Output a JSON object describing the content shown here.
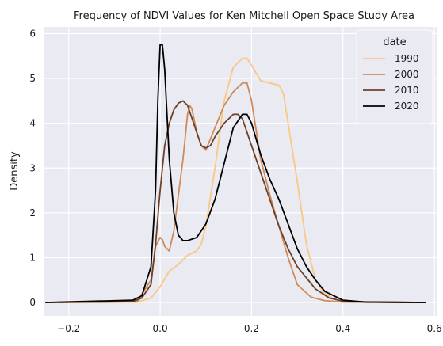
{
  "chart_data": {
    "type": "line",
    "title": "Frequency of NDVI Values for Ken Mitchell Open Space Study Area",
    "xlabel": "",
    "ylabel": "Density",
    "xlim": [
      -0.255,
      0.605
    ],
    "ylim": [
      -0.3,
      6.15
    ],
    "xticks": [
      -0.2,
      0.0,
      0.2,
      0.4,
      0.6
    ],
    "xtick_labels": [
      "−0.2",
      "0.0",
      "0.2",
      "0.4",
      "0.6"
    ],
    "yticks": [
      0,
      1,
      2,
      3,
      4,
      5,
      6
    ],
    "ytick_labels": [
      "0",
      "1",
      "2",
      "3",
      "4",
      "5",
      "6"
    ],
    "grid": true,
    "background": "#eaeaf2",
    "legend": {
      "title": "date",
      "placement": "top-right"
    },
    "series": [
      {
        "name": "1990",
        "color": "#fcc684",
        "x": [
          -0.22,
          -0.05,
          -0.02,
          0.0,
          0.02,
          0.04,
          0.06,
          0.07,
          0.08,
          0.09,
          0.1,
          0.12,
          0.14,
          0.16,
          0.18,
          0.19,
          0.2,
          0.22,
          0.24,
          0.26,
          0.27,
          0.28,
          0.3,
          0.32,
          0.34,
          0.36,
          0.38,
          0.4,
          0.45,
          0.58
        ],
        "y": [
          0,
          0.01,
          0.1,
          0.35,
          0.7,
          0.85,
          1.05,
          1.1,
          1.15,
          1.3,
          1.7,
          3.0,
          4.5,
          5.25,
          5.45,
          5.45,
          5.3,
          4.95,
          4.9,
          4.85,
          4.65,
          4.0,
          2.7,
          1.3,
          0.5,
          0.2,
          0.08,
          0.03,
          0.01,
          0
        ]
      },
      {
        "name": "2000",
        "color": "#cf8a5a",
        "x": [
          -0.22,
          -0.05,
          -0.02,
          -0.01,
          0.0,
          0.005,
          0.01,
          0.02,
          0.03,
          0.05,
          0.06,
          0.065,
          0.07,
          0.08,
          0.09,
          0.1,
          0.12,
          0.14,
          0.16,
          0.18,
          0.19,
          0.2,
          0.22,
          0.24,
          0.26,
          0.28,
          0.3,
          0.33,
          0.36,
          0.4,
          0.45,
          0.58
        ],
        "y": [
          0,
          0.02,
          0.5,
          1.25,
          1.45,
          1.4,
          1.25,
          1.15,
          1.6,
          3.2,
          4.2,
          4.4,
          4.3,
          3.8,
          3.5,
          3.4,
          3.9,
          4.4,
          4.7,
          4.9,
          4.9,
          4.5,
          3.2,
          2.4,
          1.7,
          1.0,
          0.4,
          0.12,
          0.04,
          0.01,
          0.005,
          0
        ]
      },
      {
        "name": "2010",
        "color": "#6e4028",
        "x": [
          -0.25,
          -0.06,
          -0.04,
          -0.02,
          -0.01,
          0.0,
          0.01,
          0.02,
          0.03,
          0.04,
          0.05,
          0.06,
          0.07,
          0.08,
          0.09,
          0.1,
          0.11,
          0.12,
          0.14,
          0.16,
          0.17,
          0.18,
          0.2,
          0.22,
          0.24,
          0.26,
          0.28,
          0.3,
          0.32,
          0.34,
          0.37,
          0.4,
          0.45,
          0.58
        ],
        "y": [
          0,
          0.02,
          0.1,
          0.4,
          1.3,
          2.5,
          3.5,
          4.0,
          4.3,
          4.45,
          4.5,
          4.4,
          4.1,
          3.8,
          3.5,
          3.45,
          3.5,
          3.7,
          4.0,
          4.2,
          4.2,
          4.1,
          3.5,
          2.9,
          2.3,
          1.7,
          1.2,
          0.8,
          0.55,
          0.3,
          0.1,
          0.03,
          0.01,
          0
        ]
      },
      {
        "name": "2020",
        "color": "#000000",
        "x": [
          -0.25,
          -0.06,
          -0.04,
          -0.02,
          -0.01,
          -0.005,
          0.0,
          0.005,
          0.01,
          0.015,
          0.02,
          0.03,
          0.04,
          0.05,
          0.06,
          0.08,
          0.1,
          0.12,
          0.14,
          0.16,
          0.18,
          0.19,
          0.2,
          0.22,
          0.24,
          0.26,
          0.28,
          0.3,
          0.32,
          0.34,
          0.36,
          0.4,
          0.45,
          0.58
        ],
        "y": [
          0,
          0.05,
          0.15,
          0.8,
          2.5,
          4.5,
          5.75,
          5.75,
          5.2,
          4.2,
          3.2,
          2.0,
          1.5,
          1.38,
          1.38,
          1.45,
          1.75,
          2.3,
          3.1,
          3.9,
          4.2,
          4.2,
          4.0,
          3.3,
          2.75,
          2.3,
          1.75,
          1.2,
          0.8,
          0.5,
          0.25,
          0.05,
          0.01,
          0
        ]
      }
    ]
  }
}
